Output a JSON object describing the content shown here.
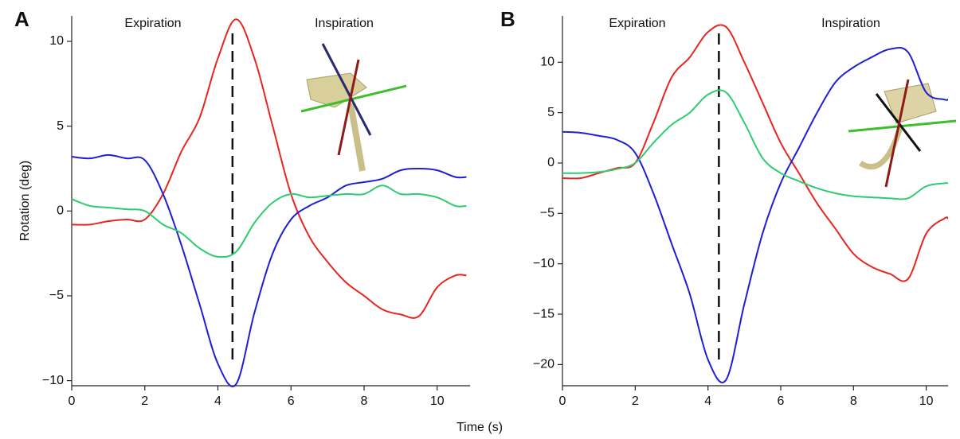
{
  "chart_data": [
    {
      "type": "line",
      "panel": "A",
      "y_label": "Rotation (deg)",
      "x_label": "Time (s)",
      "annotations": [
        "Expiration",
        "Inspiration"
      ],
      "marker_x": 4.4,
      "xlim": [
        0,
        10.9
      ],
      "ylim": [
        -10.3,
        11.5
      ],
      "xticks": [
        0,
        2,
        4,
        6,
        8,
        10
      ],
      "yticks": [
        {
          "value": -10,
          "label": "−10"
        },
        {
          "value": -5,
          "label": "−5"
        },
        0,
        5,
        10
      ],
      "x": [
        0,
        0.5,
        1,
        1.5,
        2,
        2.5,
        3,
        3.5,
        4,
        4.5,
        5,
        5.5,
        6,
        6.5,
        7,
        7.5,
        8,
        8.5,
        9,
        9.5,
        10,
        10.5,
        10.8
      ],
      "series": [
        {
          "color": "#e8251f",
          "values": [
            -0.8,
            -0.8,
            -0.6,
            -0.5,
            -0.5,
            1,
            3.5,
            5.5,
            9,
            11.3,
            9,
            5,
            1,
            -1.5,
            -3,
            -4.2,
            -5,
            -5.8,
            -6.1,
            -6.2,
            -4.5,
            -3.8,
            -3.8
          ]
        },
        {
          "color": "#1d1fd6",
          "values": [
            3.2,
            3.1,
            3.3,
            3.1,
            3.0,
            1,
            -2,
            -5.5,
            -9,
            -10.2,
            -6,
            -2.5,
            -0.5,
            0.3,
            0.8,
            1.5,
            1.7,
            1.9,
            2.4,
            2.5,
            2.4,
            2.0,
            2.0
          ]
        },
        {
          "color": "#2ecc71",
          "values": [
            0.7,
            0.3,
            0.2,
            0.1,
            0,
            -0.8,
            -1.3,
            -2.2,
            -2.7,
            -2.4,
            -0.7,
            0.5,
            1.0,
            0.8,
            0.9,
            1.0,
            1.0,
            1.5,
            1.0,
            1.0,
            0.8,
            0.3,
            0.3
          ]
        }
      ]
    },
    {
      "type": "line",
      "panel": "B",
      "annotations": [
        "Expiration",
        "Inspiration"
      ],
      "marker_x": 4.3,
      "xlim": [
        0,
        10.6
      ],
      "ylim": [
        -22.1,
        14.6
      ],
      "xticks": [
        0,
        2,
        4,
        6,
        8,
        10
      ],
      "yticks": [
        {
          "value": -20,
          "label": "−20"
        },
        {
          "value": -15,
          "label": "−15"
        },
        {
          "value": -10,
          "label": "−10"
        },
        {
          "value": -5,
          "label": "−5"
        },
        0,
        5,
        10
      ],
      "x": [
        0,
        0.5,
        1,
        1.5,
        2,
        2.5,
        3,
        3.5,
        4,
        4.5,
        5,
        5.5,
        6,
        6.5,
        7,
        7.5,
        8,
        8.5,
        9,
        9.5,
        10,
        10.5,
        10.6
      ],
      "series": [
        {
          "color": "#e8251f",
          "values": [
            -1.5,
            -1.5,
            -1,
            -0.5,
            0,
            4,
            8.5,
            10.5,
            13,
            13.5,
            10,
            6,
            2,
            -1,
            -4,
            -6.5,
            -9,
            -10.3,
            -11,
            -11.5,
            -7,
            -5.5,
            -5.5
          ]
        },
        {
          "color": "#1d1fd6",
          "values": [
            3.1,
            3,
            2.7,
            2.3,
            1,
            -3,
            -8,
            -13,
            -19.5,
            -21.5,
            -14,
            -7,
            -2,
            1.5,
            5,
            8,
            9.5,
            10.5,
            11.3,
            11,
            7,
            6.3,
            6.3
          ]
        },
        {
          "color": "#2ecc71",
          "values": [
            -1,
            -1,
            -0.9,
            -0.6,
            0,
            2,
            3.8,
            5,
            6.8,
            7,
            4,
            0.5,
            -1,
            -1.8,
            -2.5,
            -3,
            -3.3,
            -3.4,
            -3.5,
            -3.5,
            -2.3,
            -2,
            -2
          ]
        }
      ]
    }
  ]
}
